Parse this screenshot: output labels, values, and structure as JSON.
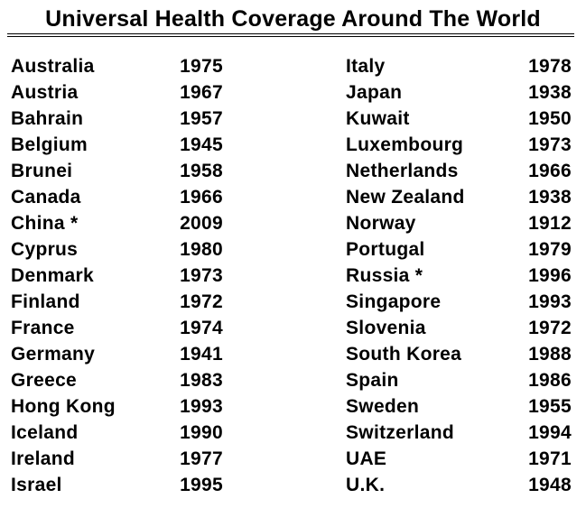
{
  "title": "Universal Health Coverage Around The World",
  "left_column": [
    {
      "country": "Australia",
      "year": "1975"
    },
    {
      "country": "Austria",
      "year": "1967"
    },
    {
      "country": "Bahrain",
      "year": "1957"
    },
    {
      "country": "Belgium",
      "year": "1945"
    },
    {
      "country": "Brunei",
      "year": "1958"
    },
    {
      "country": "Canada",
      "year": "1966"
    },
    {
      "country": "China *",
      "year": "2009"
    },
    {
      "country": "Cyprus",
      "year": "1980"
    },
    {
      "country": "Denmark",
      "year": "1973"
    },
    {
      "country": "Finland",
      "year": "1972"
    },
    {
      "country": "France",
      "year": "1974"
    },
    {
      "country": "Germany",
      "year": "1941"
    },
    {
      "country": "Greece",
      "year": "1983"
    },
    {
      "country": "Hong Kong",
      "year": "1993"
    },
    {
      "country": "Iceland",
      "year": "1990"
    },
    {
      "country": "Ireland",
      "year": "1977"
    },
    {
      "country": "Israel",
      "year": "1995"
    }
  ],
  "right_column": [
    {
      "country": "Italy",
      "year": "1978"
    },
    {
      "country": "Japan",
      "year": "1938"
    },
    {
      "country": "Kuwait",
      "year": "1950"
    },
    {
      "country": "Luxembourg",
      "year": "1973"
    },
    {
      "country": "Netherlands",
      "year": "1966"
    },
    {
      "country": "New Zealand",
      "year": "1938"
    },
    {
      "country": "Norway",
      "year": "1912"
    },
    {
      "country": "Portugal",
      "year": "1979"
    },
    {
      "country": "Russia *",
      "year": "1996"
    },
    {
      "country": "Singapore",
      "year": "1993"
    },
    {
      "country": "Slovenia",
      "year": "1972"
    },
    {
      "country": "South Korea",
      "year": "1988"
    },
    {
      "country": "Spain",
      "year": "1986"
    },
    {
      "country": "Sweden",
      "year": "1955"
    },
    {
      "country": "Switzerland",
      "year": "1994"
    },
    {
      "country": "UAE",
      "year": "1971"
    },
    {
      "country": "U.K.",
      "year": "1948"
    }
  ]
}
